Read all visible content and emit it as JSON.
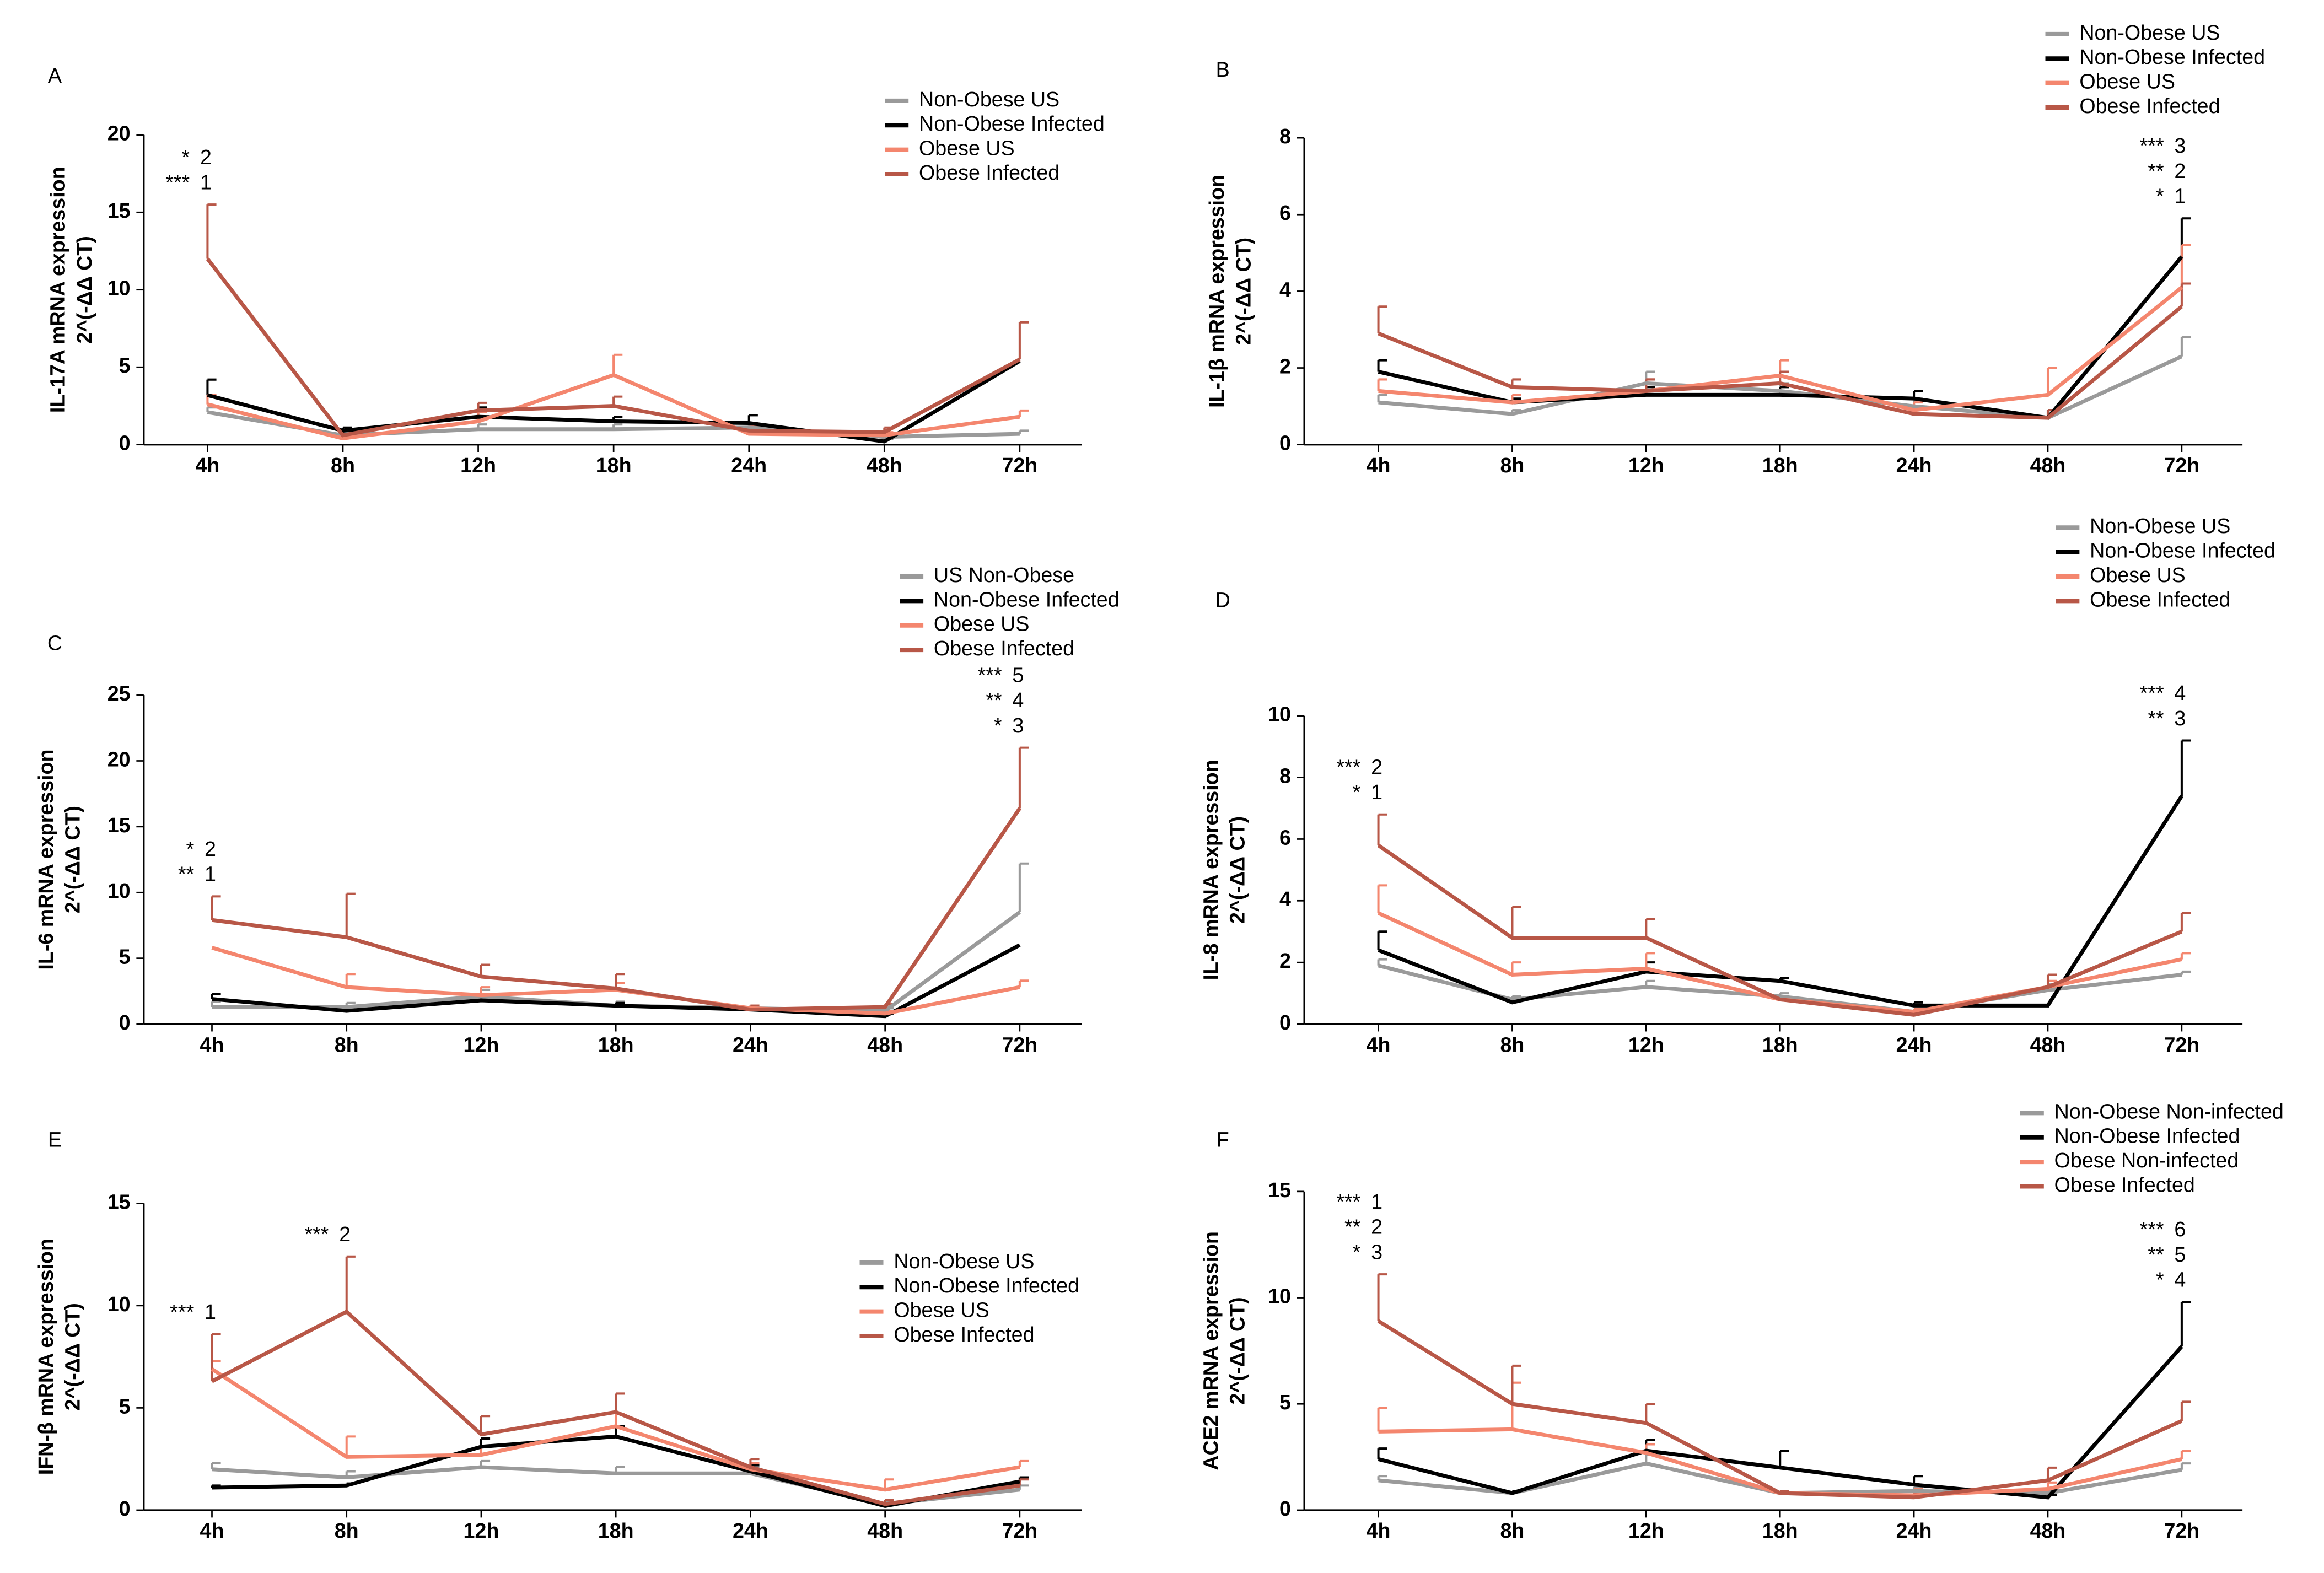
{
  "chart_data": [
    {
      "type": "line",
      "panel_label": "A",
      "y_label": [
        "IL-17A mRNA expression",
        "2^(-ΔΔ CT)"
      ],
      "categories": [
        "4h",
        "8h",
        "12h",
        "18h",
        "24h",
        "48h",
        "72h"
      ],
      "ylim": [
        0,
        20
      ],
      "yticks": [
        0,
        5,
        10,
        15,
        20
      ],
      "series": [
        {
          "name": "Non-Obese US",
          "color": "#9a9a9a",
          "values": [
            2.1,
            0.6,
            1.0,
            1.0,
            1.1,
            0.5,
            0.7
          ],
          "errors": [
            0.3,
            0.2,
            0.3,
            0.3,
            0.3,
            0.2,
            0.2
          ]
        },
        {
          "name": "Non-Obese Infected",
          "color": "#000000",
          "values": [
            3.2,
            0.9,
            1.8,
            1.5,
            1.4,
            0.2,
            5.4
          ],
          "errors": [
            1.0,
            0.2,
            0.6,
            0.3,
            0.5,
            0.2,
            0
          ]
        },
        {
          "name": "Obese US",
          "color": "#f4866e",
          "values": [
            2.6,
            0.4,
            1.5,
            4.5,
            0.7,
            0.6,
            1.8
          ],
          "errors": [
            0.6,
            0.2,
            0.6,
            1.3,
            0.3,
            0.2,
            0.4
          ]
        },
        {
          "name": "Obese Infected",
          "color": "#b85747",
          "values": [
            12.0,
            0.6,
            2.2,
            2.5,
            0.9,
            0.8,
            5.5
          ],
          "errors": [
            3.5,
            0.3,
            0.5,
            0.6,
            0.3,
            0.3,
            2.4
          ]
        }
      ],
      "annotations": [
        {
          "category": "4h",
          "lines": [
            {
              "stars": "*",
              "number": "2"
            },
            {
              "stars": "***",
              "number": "1"
            }
          ]
        }
      ]
    },
    {
      "type": "line",
      "panel_label": "B",
      "y_label": [
        "IL-1β mRNA expression",
        "2^(-ΔΔ CT)"
      ],
      "categories": [
        "4h",
        "8h",
        "12h",
        "18h",
        "24h",
        "48h",
        "72h"
      ],
      "ylim": [
        0,
        8
      ],
      "yticks": [
        0,
        2,
        4,
        6,
        8
      ],
      "series": [
        {
          "name": "Non-Obese US",
          "color": "#9a9a9a",
          "values": [
            1.1,
            0.8,
            1.6,
            1.4,
            1.0,
            0.7,
            2.3
          ],
          "errors": [
            0.2,
            0.1,
            0.3,
            0.2,
            0.2,
            0.1,
            0.5
          ]
        },
        {
          "name": "Non-Obese Infected",
          "color": "#000000",
          "values": [
            1.9,
            1.1,
            1.3,
            1.3,
            1.2,
            0.7,
            4.9
          ],
          "errors": [
            0.3,
            0.1,
            0.2,
            0.2,
            0.2,
            0.2,
            1.0
          ]
        },
        {
          "name": "Obese US",
          "color": "#f4866e",
          "values": [
            1.4,
            1.1,
            1.4,
            1.8,
            0.9,
            1.3,
            4.1
          ],
          "errors": [
            0.3,
            0.2,
            0.3,
            0.4,
            0.2,
            0.7,
            1.1
          ]
        },
        {
          "name": "Obese Infected",
          "color": "#b85747",
          "values": [
            2.9,
            1.5,
            1.4,
            1.6,
            0.8,
            0.7,
            3.6
          ],
          "errors": [
            0.7,
            0.2,
            0.3,
            0.3,
            0.2,
            0.2,
            0.6
          ]
        }
      ],
      "annotations": [
        {
          "category": "72h",
          "lines": [
            {
              "stars": "***",
              "number": "3"
            },
            {
              "stars": "**",
              "number": "2"
            },
            {
              "stars": "*",
              "number": "1"
            }
          ]
        }
      ]
    },
    {
      "type": "line",
      "panel_label": "C",
      "y_label": [
        "IL-6 mRNA expression",
        "2^(-ΔΔ CT)"
      ],
      "categories": [
        "4h",
        "8h",
        "12h",
        "18h",
        "24h",
        "48h",
        "72h"
      ],
      "ylim": [
        0,
        25
      ],
      "yticks": [
        0,
        5,
        10,
        15,
        20,
        25
      ],
      "series": [
        {
          "name": "US Non-Obese",
          "color": "#9a9a9a",
          "values": [
            1.3,
            1.3,
            2.1,
            1.4,
            1.2,
            1.0,
            8.5
          ],
          "errors": [
            0.4,
            0.3,
            0.5,
            0.3,
            0.2,
            0.2,
            3.7
          ]
        },
        {
          "name": "Non-Obese Infected",
          "color": "#000000",
          "values": [
            1.9,
            1.0,
            1.8,
            1.4,
            1.1,
            0.6,
            6.0
          ],
          "errors": [
            0.4,
            0.3,
            0.3,
            0.2,
            0.2,
            0.2,
            0
          ]
        },
        {
          "name": "Obese US",
          "color": "#f4866e",
          "values": [
            5.8,
            2.8,
            2.2,
            2.6,
            1.2,
            0.8,
            2.8
          ],
          "errors": [
            0,
            1.0,
            0.6,
            0.5,
            0.2,
            0.2,
            0.5
          ]
        },
        {
          "name": "Obese Infected",
          "color": "#b85747",
          "values": [
            7.9,
            6.6,
            3.6,
            2.7,
            1.1,
            1.3,
            16.4
          ],
          "errors": [
            1.8,
            3.3,
            0.9,
            1.1,
            0.3,
            0.2,
            4.6
          ]
        }
      ],
      "annotations": [
        {
          "category": "4h",
          "lines": [
            {
              "stars": "*",
              "number": "2"
            },
            {
              "stars": "**",
              "number": "1"
            }
          ]
        },
        {
          "category": "72h",
          "lines": [
            {
              "stars": "***",
              "number": "5"
            },
            {
              "stars": "**",
              "number": "4"
            },
            {
              "stars": "*",
              "number": "3"
            }
          ]
        }
      ]
    },
    {
      "type": "line",
      "panel_label": "D",
      "y_label": [
        "IL-8 mRNA expression",
        "2^(-ΔΔ CT)"
      ],
      "categories": [
        "4h",
        "8h",
        "12h",
        "18h",
        "24h",
        "48h",
        "72h"
      ],
      "ylim": [
        0,
        10
      ],
      "yticks": [
        0,
        2,
        4,
        6,
        8,
        10
      ],
      "series": [
        {
          "name": "Non-Obese US",
          "color": "#9a9a9a",
          "values": [
            1.9,
            0.8,
            1.2,
            0.9,
            0.4,
            1.1,
            1.6
          ],
          "errors": [
            0.2,
            0.1,
            0.2,
            0.1,
            0.1,
            0.2,
            0.1
          ]
        },
        {
          "name": "Non-Obese Infected",
          "color": "#000000",
          "values": [
            2.4,
            0.7,
            1.7,
            1.4,
            0.6,
            0.6,
            7.4
          ],
          "errors": [
            0.6,
            0.1,
            0.3,
            0.1,
            0.1,
            0,
            1.8
          ]
        },
        {
          "name": "Obese US",
          "color": "#f4866e",
          "values": [
            3.6,
            1.6,
            1.8,
            0.8,
            0.4,
            1.2,
            2.1
          ],
          "errors": [
            0.9,
            0.4,
            0.5,
            0.1,
            0.1,
            0.2,
            0.2
          ]
        },
        {
          "name": "Obese Infected",
          "color": "#b85747",
          "values": [
            5.8,
            2.8,
            2.8,
            0.8,
            0.3,
            1.2,
            3.0
          ],
          "errors": [
            1.0,
            1.0,
            0.6,
            0.1,
            0.1,
            0.4,
            0.6
          ]
        }
      ],
      "annotations": [
        {
          "category": "4h",
          "lines": [
            {
              "stars": "***",
              "number": "2"
            },
            {
              "stars": "*",
              "number": "1"
            }
          ]
        },
        {
          "category": "72h",
          "lines": [
            {
              "stars": "***",
              "number": "4"
            },
            {
              "stars": "**",
              "number": "3"
            }
          ]
        }
      ]
    },
    {
      "type": "line",
      "panel_label": "E",
      "y_label": [
        "IFN-β mRNA expression",
        "2^(-ΔΔ CT)"
      ],
      "categories": [
        "4h",
        "8h",
        "12h",
        "18h",
        "24h",
        "48h",
        "72h"
      ],
      "ylim": [
        0,
        15
      ],
      "yticks": [
        0,
        5,
        10,
        15
      ],
      "series": [
        {
          "name": "Non-Obese US",
          "color": "#9a9a9a",
          "values": [
            2.0,
            1.6,
            2.1,
            1.8,
            1.8,
            0.3,
            1.0
          ],
          "errors": [
            0.3,
            0.3,
            0.3,
            0.3,
            0.3,
            0.1,
            0.2
          ]
        },
        {
          "name": "Non-Obese Infected",
          "color": "#000000",
          "values": [
            1.1,
            1.2,
            3.1,
            3.6,
            1.9,
            0.2,
            1.4
          ],
          "errors": [
            0.1,
            0.1,
            0.4,
            0.5,
            0.3,
            0.1,
            0.2
          ]
        },
        {
          "name": "Obese US",
          "color": "#f4866e",
          "values": [
            6.9,
            2.6,
            2.7,
            4.1,
            2.0,
            1.0,
            2.1
          ],
          "errors": [
            0.4,
            1.0,
            0.4,
            0.6,
            0.3,
            0.5,
            0.3
          ]
        },
        {
          "name": "Obese Infected",
          "color": "#b85747",
          "values": [
            6.3,
            9.7,
            3.7,
            4.8,
            2.1,
            0.3,
            1.2
          ],
          "errors": [
            2.3,
            2.7,
            0.9,
            0.9,
            0.4,
            0.2,
            0.3
          ]
        }
      ],
      "annotations": [
        {
          "category": "4h",
          "lines": [
            {
              "stars": "***",
              "number": "1"
            }
          ]
        },
        {
          "category": "8h",
          "lines": [
            {
              "stars": "***",
              "number": "2"
            }
          ]
        }
      ]
    },
    {
      "type": "line",
      "panel_label": "F",
      "y_label": [
        "ACE2 mRNA expression",
        "2^(-ΔΔ CT)"
      ],
      "categories": [
        "4h",
        "8h",
        "12h",
        "18h",
        "24h",
        "48h",
        "72h"
      ],
      "ylim": [
        0,
        15
      ],
      "yticks": [
        0,
        5,
        10,
        15
      ],
      "series": [
        {
          "name": "Non-Obese Non-infected",
          "color": "#9a9a9a",
          "values": [
            1.4,
            0.8,
            2.2,
            0.8,
            0.9,
            0.8,
            1.9
          ],
          "errors": [
            0.2,
            0.1,
            0.4,
            0.1,
            0.2,
            0.1,
            0.3
          ]
        },
        {
          "name": "Non-Obese Infected",
          "color": "#000000",
          "values": [
            2.4,
            0.8,
            2.8,
            2.0,
            1.2,
            0.6,
            7.7
          ],
          "errors": [
            0.5,
            0.1,
            0.5,
            0.8,
            0.4,
            0.1,
            2.1
          ]
        },
        {
          "name": "Obese Non-infected",
          "color": "#f4866e",
          "values": [
            3.7,
            3.8,
            2.7,
            0.8,
            0.7,
            1.0,
            2.4
          ],
          "errors": [
            1.1,
            2.2,
            0.4,
            0.1,
            0.3,
            0.3,
            0.4
          ]
        },
        {
          "name": "Obese Infected",
          "color": "#b85747",
          "values": [
            8.9,
            5.0,
            4.1,
            0.8,
            0.6,
            1.4,
            4.2
          ],
          "errors": [
            2.2,
            1.8,
            0.9,
            0.1,
            0.2,
            0.6,
            0.9
          ]
        }
      ],
      "annotations": [
        {
          "category": "4h",
          "lines": [
            {
              "stars": "***",
              "number": "1"
            },
            {
              "stars": "**",
              "number": "2"
            },
            {
              "stars": "*",
              "number": "3"
            }
          ]
        },
        {
          "category": "72h",
          "lines": [
            {
              "stars": "***",
              "number": "6"
            },
            {
              "stars": "**",
              "number": "5"
            },
            {
              "stars": "*",
              "number": "4"
            }
          ]
        }
      ]
    }
  ]
}
